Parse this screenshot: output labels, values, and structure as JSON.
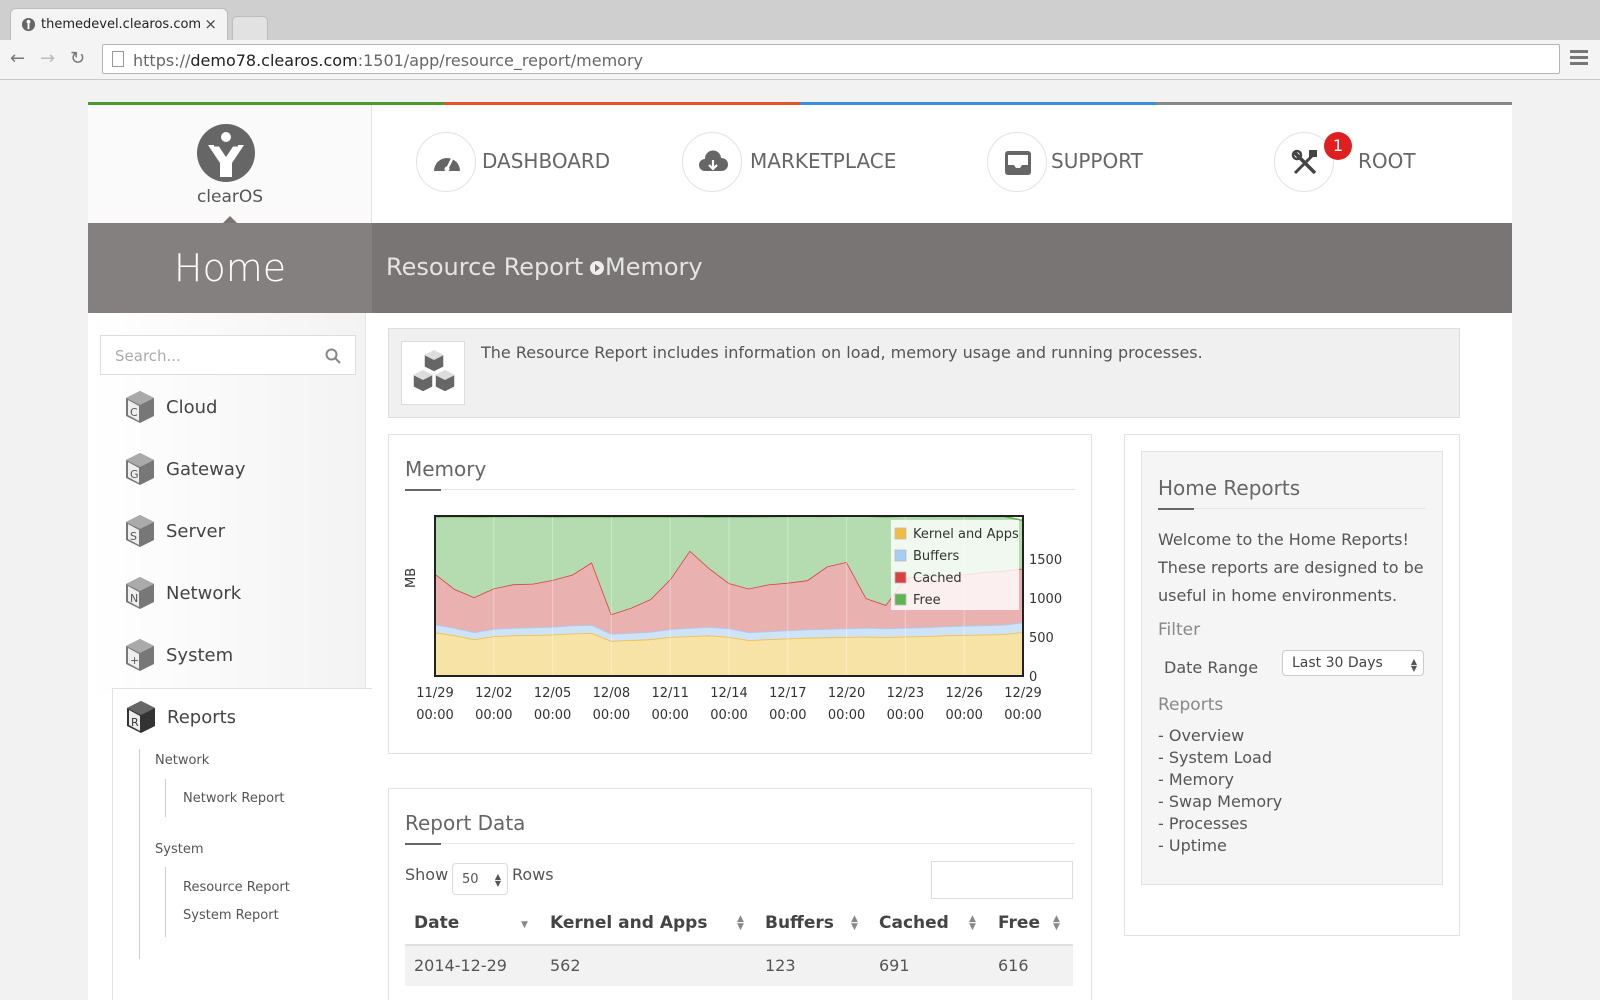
{
  "browser": {
    "tab_title": "themedevel.clearos.com",
    "tab_close": "×",
    "url_scheme": "https://",
    "url_host": "demo78.clearos.com",
    "url_rest": ":1501/app/resource_report/memory"
  },
  "brand": {
    "logo_text": "clearOS",
    "colorbar": [
      "#4a9a2d",
      "#e0562a",
      "#3b8ed8",
      "#888888"
    ]
  },
  "topnav": {
    "items": [
      {
        "label": "DASHBOARD",
        "icon": "dashboard-gauge-icon"
      },
      {
        "label": "MARKETPLACE",
        "icon": "cloud-download-icon"
      },
      {
        "label": "SUPPORT",
        "icon": "inbox-tray-icon"
      },
      {
        "label": "ROOT",
        "icon": "tools-icon",
        "badge": "1"
      }
    ]
  },
  "banner": {
    "home": "Home",
    "crumb1": "Resource Report",
    "crumb2": "Memory"
  },
  "sidebar": {
    "search_placeholder": "Search...",
    "items": [
      {
        "label": "Cloud",
        "letter": "C"
      },
      {
        "label": "Gateway",
        "letter": "G"
      },
      {
        "label": "Server",
        "letter": "S"
      },
      {
        "label": "Network",
        "letter": "N"
      },
      {
        "label": "System",
        "letter": "+"
      },
      {
        "label": "Reports",
        "letter": "R"
      }
    ],
    "reports": {
      "cat_network": "Network",
      "network_report": "Network Report",
      "cat_system": "System",
      "resource_report": "Resource Report",
      "system_report": "System Report"
    }
  },
  "info": {
    "text": "The Resource Report includes information on load, memory usage and running processes."
  },
  "memory_panel": {
    "title": "Memory"
  },
  "chart_data": {
    "type": "area",
    "title": "",
    "xlabel": "",
    "ylabel": "MB",
    "ylim": [
      0,
      2050
    ],
    "yticks": [
      0,
      500,
      1000,
      1500
    ],
    "x_ticks": [
      {
        "date": "11/29",
        "time": "00:00"
      },
      {
        "date": "12/02",
        "time": "00:00"
      },
      {
        "date": "12/05",
        "time": "00:00"
      },
      {
        "date": "12/08",
        "time": "00:00"
      },
      {
        "date": "12/11",
        "time": "00:00"
      },
      {
        "date": "12/14",
        "time": "00:00"
      },
      {
        "date": "12/17",
        "time": "00:00"
      },
      {
        "date": "12/20",
        "time": "00:00"
      },
      {
        "date": "12/23",
        "time": "00:00"
      },
      {
        "date": "12/26",
        "time": "00:00"
      },
      {
        "date": "12/29",
        "time": "00:00"
      }
    ],
    "x_days": [
      0,
      1,
      2,
      3,
      4,
      5,
      6,
      7,
      8,
      9,
      10,
      11,
      12,
      13,
      14,
      15,
      16,
      17,
      18,
      19,
      20,
      21,
      22,
      23,
      24,
      25,
      26,
      27,
      28,
      29,
      30
    ],
    "series": [
      {
        "name": "Kernel and Apps",
        "color": "#f2bd3f",
        "values": [
          560,
          520,
          470,
          510,
          520,
          525,
          530,
          545,
          550,
          450,
          460,
          470,
          500,
          510,
          520,
          500,
          460,
          470,
          480,
          490,
          495,
          500,
          505,
          500,
          505,
          510,
          520,
          525,
          530,
          535,
          562
        ]
      },
      {
        "name": "Buffers",
        "color": "#a6cdf2",
        "values": [
          100,
          95,
          90,
          92,
          95,
          98,
          100,
          102,
          105,
          90,
          92,
          95,
          100,
          105,
          108,
          110,
          100,
          102,
          104,
          106,
          108,
          110,
          112,
          110,
          112,
          114,
          116,
          118,
          120,
          121,
          123
        ]
      },
      {
        "name": "Cached",
        "color": "#d94040",
        "values": [
          650,
          500,
          450,
          520,
          560,
          560,
          600,
          650,
          800,
          250,
          320,
          420,
          640,
          990,
          750,
          580,
          560,
          600,
          610,
          630,
          800,
          850,
          380,
          300,
          640,
          650,
          650,
          660,
          680,
          690,
          691
        ]
      },
      {
        "name": "Free",
        "color": "#5fb352",
        "values": [
          730,
          930,
          1030,
          920,
          870,
          860,
          810,
          745,
          590,
          1250,
          1170,
          1060,
          800,
          440,
          660,
          850,
          920,
          870,
          850,
          820,
          640,
          590,
          1050,
          1130,
          790,
          770,
          760,
          740,
          715,
          700,
          616
        ]
      }
    ],
    "legend": "top-right"
  },
  "report_panel": {
    "title": "Report Data",
    "show": "Show",
    "rows_value": "50",
    "rows": "Rows",
    "columns": [
      "Date",
      "Kernel and Apps",
      "Buffers",
      "Cached",
      "Free"
    ],
    "data": [
      [
        "2014-12-29",
        "562",
        "123",
        "691",
        "616"
      ]
    ]
  },
  "home_reports": {
    "title": "Home Reports",
    "welcome": [
      "Welcome to the Home Reports!",
      "These reports are designed to be",
      "useful in home environments."
    ],
    "filter": "Filter",
    "date_range_label": "Date Range",
    "date_range_value": "Last 30 Days",
    "reports_label": "Reports",
    "links": [
      "- Overview",
      "- System Load",
      "- Memory",
      "- Swap Memory",
      "- Processes",
      "- Uptime"
    ]
  }
}
